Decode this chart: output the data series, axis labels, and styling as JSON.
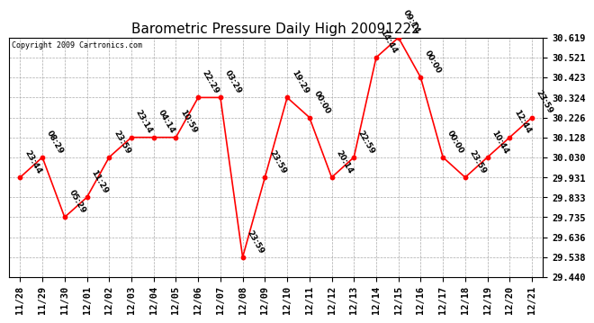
{
  "title": "Barometric Pressure Daily High 20091222",
  "copyright": "Copyright 2009 Cartronics.com",
  "x_labels": [
    "11/28",
    "11/29",
    "11/30",
    "12/01",
    "12/02",
    "12/03",
    "12/04",
    "12/05",
    "12/06",
    "12/07",
    "12/08",
    "12/09",
    "12/10",
    "12/11",
    "12/12",
    "12/13",
    "12/14",
    "12/15",
    "12/16",
    "12/17",
    "12/18",
    "12/19",
    "12/20",
    "12/21"
  ],
  "y_values": [
    29.931,
    30.03,
    29.735,
    29.833,
    30.03,
    30.128,
    30.128,
    30.128,
    30.324,
    30.324,
    29.538,
    29.931,
    30.324,
    30.226,
    29.931,
    30.03,
    30.521,
    30.619,
    30.423,
    30.03,
    29.931,
    30.03,
    30.128,
    30.226
  ],
  "time_labels": [
    "23:44",
    "08:29",
    "05:29",
    "11:29",
    "23:59",
    "23:14",
    "04:14",
    "10:59",
    "22:29",
    "03:29",
    "23:59",
    "23:59",
    "19:29",
    "00:00",
    "20:14",
    "22:59",
    "14:44",
    "09:14",
    "00:00",
    "00:00",
    "23:59",
    "10:44",
    "12:44",
    "23:59"
  ],
  "ylim_min": 29.44,
  "ylim_max": 30.619,
  "yticks": [
    29.44,
    29.538,
    29.636,
    29.735,
    29.833,
    29.931,
    30.03,
    30.128,
    30.226,
    30.324,
    30.423,
    30.521,
    30.619
  ],
  "line_color": "red",
  "marker_color": "red",
  "grid_color": "#aaaaaa",
  "background_color": "white",
  "title_fontsize": 11,
  "label_fontsize": 6,
  "tick_fontsize": 7.5,
  "annotation_fontsize": 6.5
}
